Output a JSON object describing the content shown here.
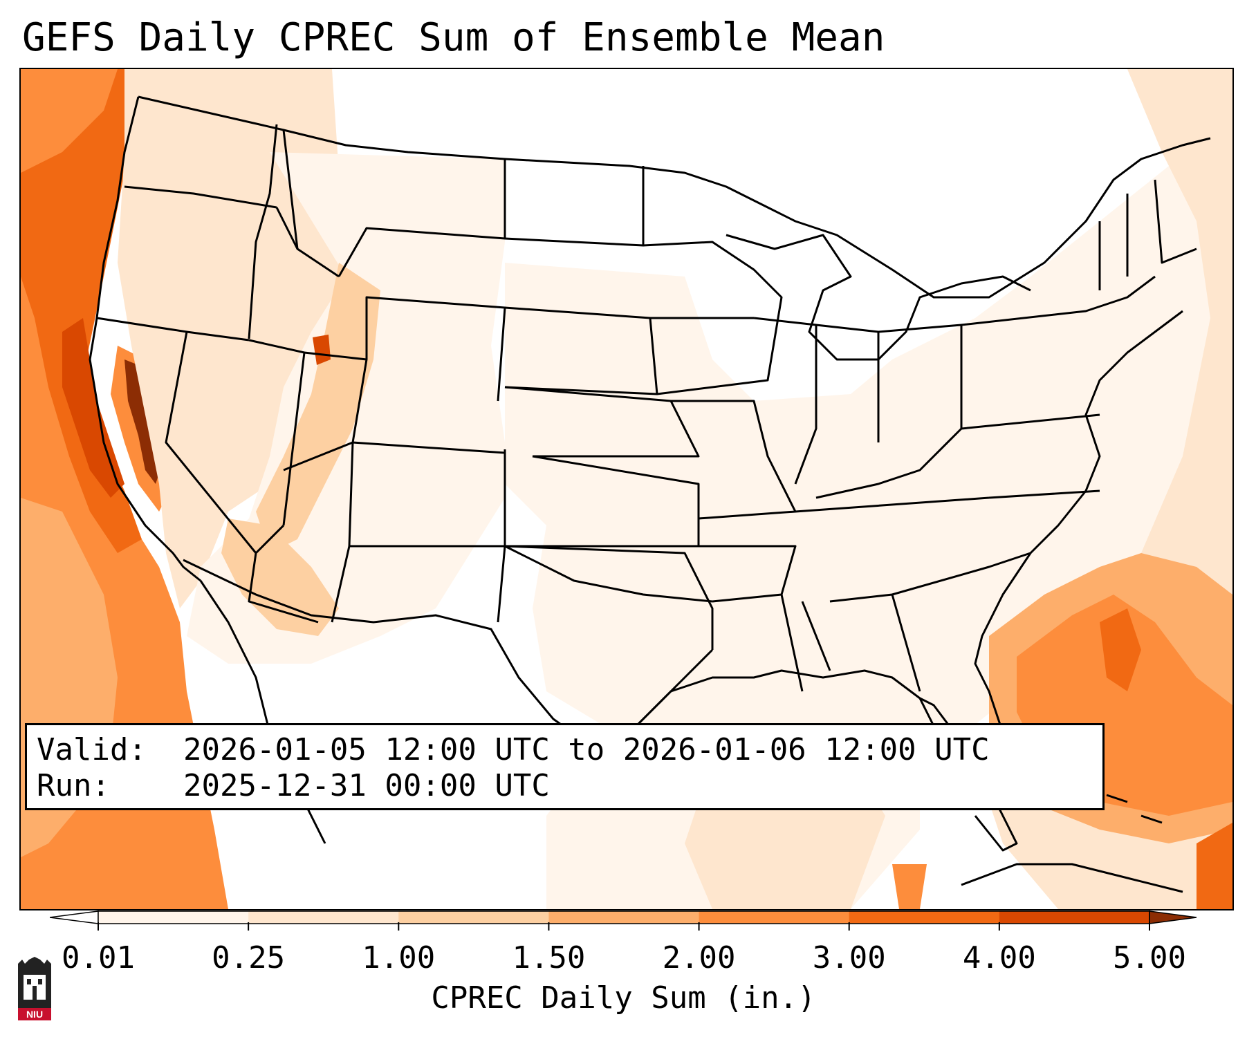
{
  "title": "GEFS Daily CPREC Sum of Ensemble Mean",
  "info": {
    "valid_label": "Valid:",
    "valid_value": "2026-01-05 12:00 UTC to 2026-01-06 12:00 UTC",
    "run_label": "Run:",
    "run_value": "2025-12-31 00:00 UTC"
  },
  "colorbar": {
    "label": "CPREC Daily Sum (in.)",
    "ticks": [
      "0.01",
      "0.25",
      "1.00",
      "1.50",
      "2.00",
      "3.00",
      "4.00",
      "5.00"
    ],
    "colors": [
      "#fff5eb",
      "#fee6ce",
      "#fdd0a2",
      "#fdae6b",
      "#fd8d3c",
      "#f16913",
      "#d94801",
      "#8c2d04"
    ]
  },
  "logo": {
    "text": "NIU",
    "colors": {
      "shield": "#222222",
      "band": "#c8102e"
    }
  },
  "map_colors": {
    "outline": "#000000",
    "very_light": "#fff5eb",
    "light": "#fee6ce",
    "medium_light": "#fdd0a2",
    "medium": "#fdae6b",
    "strong": "#fd8d3c",
    "heavy": "#f16913",
    "very_heavy": "#d94801",
    "extreme": "#8c2d04"
  }
}
